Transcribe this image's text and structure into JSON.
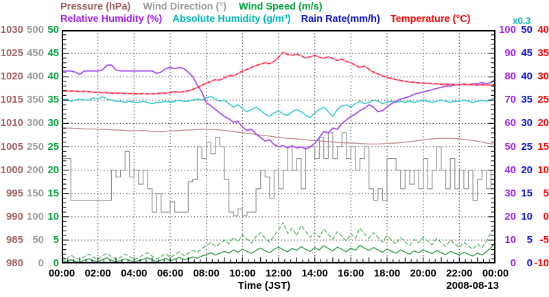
{
  "page": {
    "xaxis_title": "Time (JST)",
    "date_label": "2008-08-13",
    "scale_note": "x0.3",
    "scale_note_color": "#00b5b5",
    "background": "#ffffff",
    "grid_color": "#444444"
  },
  "legend": {
    "row1": [
      {
        "id": "pressure",
        "label": "Pressure (hPa)",
        "color": "#9f5f5f"
      },
      {
        "id": "wind-direction",
        "label": "Wind Direction (°)",
        "color": "#9a9a9a"
      },
      {
        "id": "wind-speed",
        "label": "Wind Speed (m/s)",
        "color": "#00a33a"
      }
    ],
    "row2": [
      {
        "id": "relative-humidity",
        "label": "Relative Humidity (%)",
        "color": "#a020f0"
      },
      {
        "id": "absolute-humidity",
        "label": "Absolute Humidity (g/m³)",
        "color": "#00b5b5"
      },
      {
        "id": "rain-rate",
        "label": "Rain Rate(mm/h)",
        "color": "#0f0fd0"
      },
      {
        "id": "temperature",
        "label": "Temperature (°C)",
        "color": "#ff0000"
      }
    ]
  },
  "chart_data": {
    "type": "line",
    "title": "",
    "xlabel": "Time (JST)",
    "date": "2008-08-13",
    "x_range_hours": [
      0,
      24
    ],
    "x_ticks": [
      "00:00",
      "02:00",
      "04:00",
      "06:00",
      "08:00",
      "10:00",
      "12:00",
      "14:00",
      "16:00",
      "18:00",
      "20:00",
      "22:00",
      "00:00"
    ],
    "grid": "dotted",
    "legend_position": "top",
    "scale_note": {
      "applies_to": "absolute_humidity",
      "text": "x0.3",
      "meaning": "absolute humidity in g/m³ = plotted value × 0.3"
    },
    "axes": {
      "left": [
        {
          "name": "pressure",
          "unit": "hPa",
          "color": "#9f5f5f",
          "range": [
            980,
            1030
          ],
          "ticks": [
            1030,
            1025,
            1020,
            1015,
            1010,
            1005,
            1000,
            995,
            990,
            985,
            980
          ]
        },
        {
          "name": "wind_direction",
          "unit": "°",
          "color": "#9a9a9a",
          "range": [
            0,
            500
          ],
          "ticks": [
            500,
            450,
            400,
            350,
            300,
            250,
            200,
            150,
            100,
            50,
            0
          ]
        },
        {
          "name": "wind_speed",
          "unit": "m/s",
          "color": "#00a33a",
          "range": [
            0,
            50
          ],
          "ticks": [
            50,
            45,
            40,
            35,
            30,
            25,
            20,
            15,
            10,
            5,
            0
          ]
        }
      ],
      "right": [
        {
          "name": "relative_humidity",
          "unit": "%",
          "color": "#a020f0",
          "range": [
            0,
            100
          ],
          "ticks": [
            100,
            90,
            80,
            70,
            60,
            50,
            40,
            30,
            20,
            10,
            0
          ]
        },
        {
          "name": "rain_rate",
          "unit": "mm/h",
          "color": "#0f0fd0",
          "range": [
            0,
            50
          ],
          "ticks": [
            50,
            45,
            40,
            35,
            30,
            25,
            20,
            15,
            10,
            5,
            0
          ]
        },
        {
          "name": "temperature",
          "unit": "°C",
          "color": "#ff0000",
          "range": [
            -10,
            40
          ],
          "ticks": [
            40,
            35,
            30,
            25,
            20,
            15,
            10,
            5,
            0,
            -5,
            -10
          ]
        }
      ]
    },
    "series": [
      {
        "name": "rain_rate",
        "label": "Rain Rate",
        "unit": "mm/h",
        "color": "#4747bb",
        "range": [
          0,
          50
        ],
        "x_step": 24,
        "values": [
          0,
          0
        ]
      },
      {
        "name": "wind_direction",
        "label": "Wind Direction",
        "unit": "°",
        "color": "#8f8f8f",
        "range": [
          0,
          500
        ],
        "step": true,
        "x_step": 0.25,
        "values": [
          225,
          225,
          135,
          135,
          135,
          135,
          135,
          135,
          135,
          135,
          135,
          200,
          185,
          200,
          240,
          185,
          200,
          170,
          200,
          160,
          110,
          150,
          110,
          110,
          132,
          110,
          110,
          110,
          175,
          180,
          250,
          225,
          260,
          235,
          270,
          250,
          180,
          110,
          103,
          117,
          103,
          110,
          110,
          160,
          200,
          185,
          140,
          200,
          160,
          200,
          250,
          200,
          225,
          160,
          250,
          250,
          225,
          270,
          225,
          280,
          225,
          250,
          280,
          225,
          250,
          200,
          225,
          250,
          160,
          135,
          160,
          135,
          225,
          225,
          200,
          160,
          200,
          170,
          200,
          160,
          225,
          160,
          200,
          250,
          200,
          160,
          225,
          160,
          200,
          160,
          200,
          135,
          180,
          200,
          160,
          200,
          190
        ]
      },
      {
        "name": "pressure",
        "label": "Pressure",
        "unit": "hPa",
        "color": "#bd8b8b",
        "range": [
          980,
          1030
        ],
        "x_step": 0.5,
        "values": [
          1009.0,
          1009.0,
          1008.9,
          1008.8,
          1008.8,
          1008.7,
          1008.6,
          1008.5,
          1008.4,
          1008.5,
          1008.3,
          1008.2,
          1008.4,
          1008.5,
          1008.6,
          1008.7,
          1008.8,
          1008.7,
          1008.5,
          1008.3,
          1008.0,
          1007.8,
          1007.5,
          1007.3,
          1007.0,
          1006.8,
          1006.7,
          1006.5,
          1006.3,
          1006.2,
          1006.0,
          1005.9,
          1005.8,
          1005.7,
          1005.6,
          1005.6,
          1005.7,
          1005.8,
          1006.0,
          1006.2,
          1006.5,
          1006.7,
          1006.8,
          1006.8,
          1006.7,
          1006.5,
          1006.2,
          1005.8,
          1005.5
        ]
      },
      {
        "name": "wind_gust",
        "label": "Wind Speed (gust)",
        "unit": "m/s",
        "color": "#55b268",
        "range": [
          0,
          50
        ],
        "dash": true,
        "x_step": 0.25,
        "values": [
          1.5,
          0.9,
          1.8,
          1.2,
          0.8,
          1.5,
          2.0,
          1.3,
          0.9,
          1.7,
          2.2,
          1.4,
          0.9,
          1.3,
          2.0,
          1.5,
          0.8,
          1.2,
          1.8,
          2.3,
          1.6,
          1.0,
          1.5,
          2.1,
          1.3,
          1.8,
          2.5,
          1.7,
          2.2,
          2.8,
          2.4,
          3.2,
          3.8,
          4.5,
          3.6,
          4.2,
          5.0,
          4.2,
          5.6,
          4.6,
          6.2,
          5.2,
          4.4,
          5.8,
          6.6,
          5.4,
          4.6,
          6.0,
          7.2,
          8.8,
          6.4,
          7.6,
          6.0,
          8.2,
          6.8,
          5.6,
          6.6,
          5.6,
          7.4,
          6.2,
          5.2,
          6.8,
          5.8,
          4.8,
          6.4,
          5.4,
          7.6,
          6.4,
          5.4,
          6.6,
          5.6,
          4.6,
          6.0,
          5.0,
          4.2,
          5.6,
          4.6,
          3.8,
          5.2,
          4.4,
          5.6,
          4.8,
          4.0,
          5.4,
          4.4,
          3.6,
          5.0,
          4.2,
          3.4,
          4.6,
          3.8,
          3.0,
          4.2,
          3.4,
          4.8,
          6.6,
          7.8
        ]
      },
      {
        "name": "wind_speed",
        "label": "Wind Speed",
        "unit": "m/s",
        "color": "#35a04d",
        "range": [
          0,
          50
        ],
        "x_step": 0.25,
        "values": [
          0.7,
          0.4,
          0.8,
          0.4,
          0.3,
          0.7,
          1.0,
          0.6,
          0.4,
          0.8,
          1.2,
          0.7,
          0.4,
          0.6,
          1.0,
          0.7,
          0.3,
          0.6,
          0.9,
          1.2,
          0.8,
          0.4,
          0.7,
          1.1,
          0.6,
          0.9,
          1.3,
          0.8,
          1.0,
          1.4,
          1.1,
          1.6,
          1.9,
          2.3,
          1.8,
          2.2,
          2.6,
          2.2,
          2.9,
          2.4,
          3.1,
          2.6,
          2.2,
          2.8,
          3.3,
          2.7,
          2.3,
          3.0,
          3.5,
          2.9,
          2.5,
          3.2,
          2.8,
          3.6,
          3.0,
          2.6,
          3.4,
          2.9,
          3.8,
          3.2,
          2.7,
          3.5,
          3.0,
          2.5,
          3.3,
          2.8,
          3.9,
          3.3,
          2.8,
          3.4,
          2.9,
          2.4,
          3.1,
          2.6,
          2.2,
          2.9,
          2.4,
          2.0,
          2.7,
          2.3,
          2.9,
          2.5,
          2.1,
          2.8,
          2.3,
          1.9,
          2.6,
          2.2,
          1.8,
          2.4,
          2.0,
          1.6,
          2.2,
          1.8,
          2.5,
          3.4,
          4.6
        ]
      },
      {
        "name": "absolute_humidity",
        "label": "Absolute Humidity (plotted, ×0.3 = g/m³)",
        "unit": "scaled",
        "color": "#2cc9c9",
        "range": [
          0,
          100
        ],
        "x_step": 0.25,
        "values": [
          70.0,
          70.5,
          69.5,
          70.0,
          70.5,
          70.0,
          70.0,
          71.0,
          70.5,
          71.5,
          70.5,
          70.0,
          69.5,
          69.5,
          69.0,
          69.5,
          69.0,
          69.0,
          69.5,
          69.0,
          68.5,
          69.0,
          69.0,
          69.5,
          69.0,
          69.5,
          70.0,
          69.5,
          69.5,
          70.0,
          70.5,
          70.0,
          71.0,
          71.5,
          70.5,
          69.5,
          70.0,
          68.5,
          67.0,
          68.0,
          66.5,
          65.0,
          66.0,
          67.0,
          65.5,
          64.0,
          63.0,
          64.5,
          65.5,
          64.0,
          63.5,
          65.0,
          66.0,
          65.0,
          63.5,
          62.5,
          64.5,
          66.0,
          67.0,
          65.0,
          63.0,
          66.0,
          67.5,
          68.0,
          67.0,
          68.5,
          69.5,
          68.5,
          69.0,
          70.0,
          69.5,
          68.5,
          69.0,
          69.5,
          69.0,
          69.5,
          69.0,
          69.5,
          69.0,
          69.5,
          70.0,
          69.5,
          69.0,
          69.5,
          70.0,
          69.5,
          69.0,
          69.5,
          69.5,
          70.0,
          69.5,
          69.0,
          69.5,
          70.0,
          69.5,
          70.0,
          71.5
        ]
      },
      {
        "name": "relative_humidity",
        "label": "Relative Humidity",
        "unit": "%",
        "color": "#a44ef0",
        "range": [
          0,
          100
        ],
        "x_step": 0.25,
        "values": [
          82.5,
          82.5,
          82.5,
          82.0,
          81.0,
          82.5,
          82.5,
          82.5,
          82.5,
          83.0,
          85.0,
          85.0,
          83.0,
          82.5,
          82.5,
          82.5,
          82.5,
          82.5,
          82.5,
          82.5,
          82.5,
          81.5,
          82.0,
          83.5,
          84.0,
          83.5,
          84.0,
          83.5,
          82.0,
          80.0,
          76.5,
          73.5,
          69.0,
          67.5,
          66.0,
          64.5,
          63.0,
          62.0,
          60.5,
          60.8,
          58.5,
          57.0,
          57.5,
          55.5,
          54.0,
          52.5,
          53.0,
          51.0,
          50.0,
          50.5,
          49.5,
          50.5,
          49.5,
          50.0,
          49.0,
          50.0,
          51.5,
          54.0,
          56.5,
          56.0,
          58.0,
          57.5,
          60.0,
          61.5,
          63.0,
          64.0,
          65.5,
          66.5,
          68.0,
          67.0,
          65.0,
          65.5,
          67.0,
          68.5,
          69.5,
          70.5,
          71.0,
          71.5,
          72.5,
          73.0,
          73.5,
          74.0,
          74.5,
          75.0,
          75.5,
          76.0,
          76.0,
          76.5,
          76.5,
          77.0,
          76.5,
          77.0,
          77.0,
          77.5,
          77.0,
          77.5,
          79.0
        ]
      },
      {
        "name": "temperature",
        "label": "Temperature",
        "unit": "°C",
        "color": "#ff2e3e",
        "overlay_color": "#ff85b8",
        "range": [
          -10,
          40
        ],
        "x_step": 0.25,
        "values": [
          27.0,
          27.0,
          26.9,
          26.9,
          26.8,
          26.9,
          26.8,
          26.7,
          26.7,
          26.6,
          26.6,
          26.5,
          26.5,
          26.5,
          26.4,
          26.4,
          26.4,
          26.3,
          26.4,
          26.3,
          26.3,
          26.4,
          26.5,
          26.5,
          26.6,
          26.8,
          26.7,
          26.8,
          27.0,
          27.3,
          27.7,
          28.2,
          28.6,
          29.0,
          29.4,
          29.3,
          29.8,
          30.3,
          30.2,
          30.7,
          31.2,
          31.6,
          32.0,
          32.4,
          32.7,
          33.0,
          32.8,
          33.3,
          34.2,
          35.3,
          34.8,
          34.6,
          34.9,
          34.5,
          34.0,
          34.3,
          34.6,
          34.2,
          34.0,
          34.3,
          33.9,
          33.5,
          33.8,
          33.3,
          33.0,
          32.5,
          32.0,
          32.3,
          31.6,
          31.0,
          30.6,
          30.2,
          29.9,
          29.6,
          29.4,
          29.2,
          29.0,
          28.9,
          28.8,
          28.7,
          28.6,
          28.6,
          28.5,
          28.5,
          28.4,
          28.4,
          28.4,
          28.3,
          28.3,
          28.4,
          28.3,
          28.3,
          28.2,
          28.3,
          28.2,
          28.2,
          28.3
        ]
      }
    ]
  }
}
